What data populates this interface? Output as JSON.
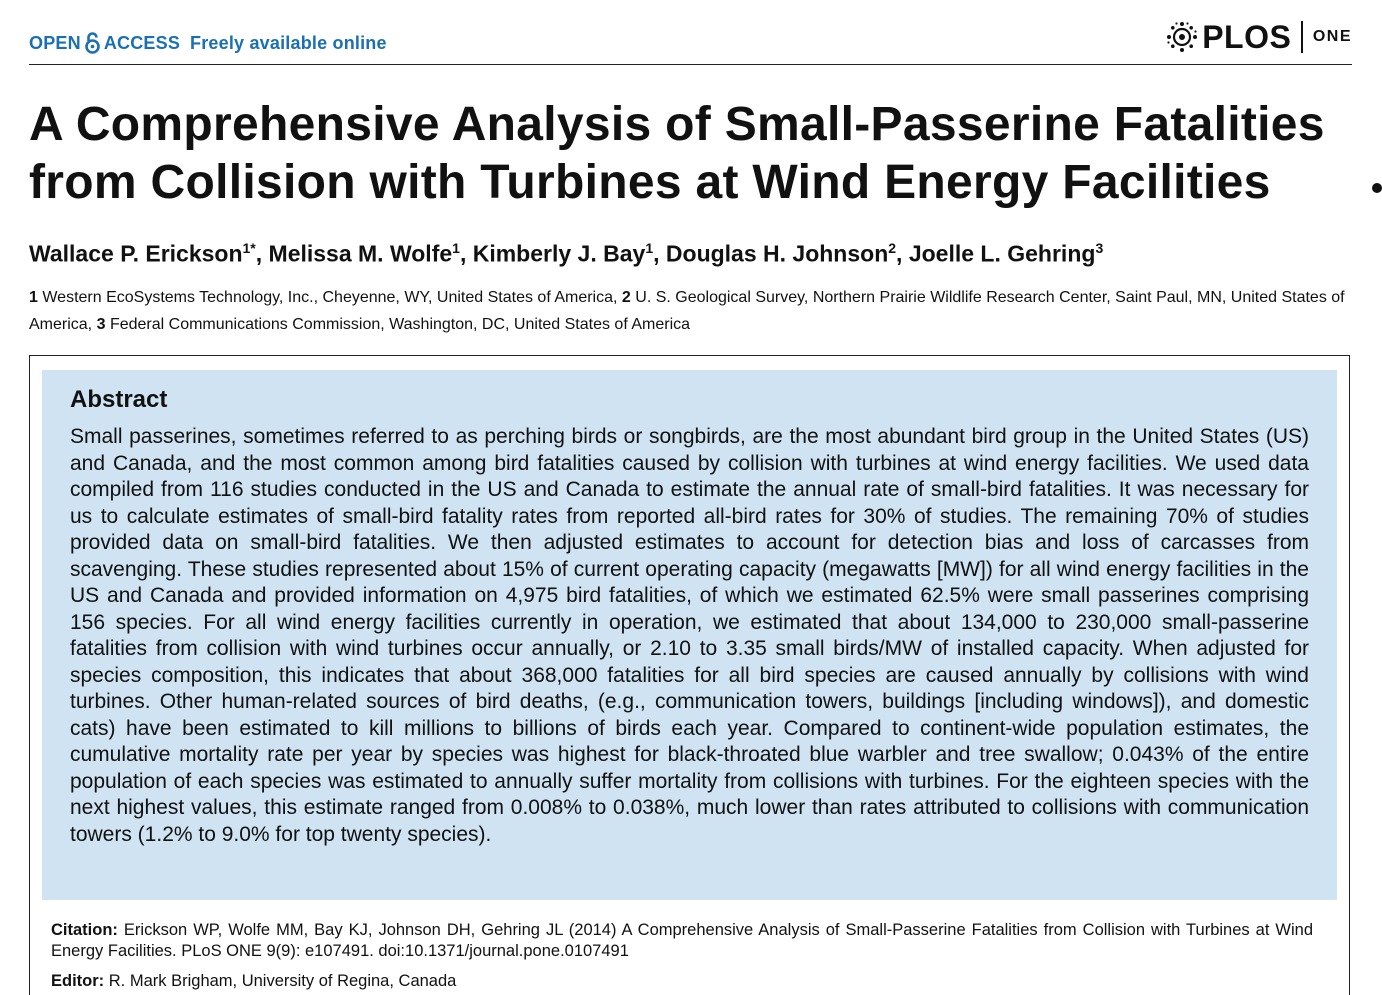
{
  "header": {
    "open_access": "OPEN",
    "access": "ACCESS",
    "freely_available": "Freely available online",
    "journal_brand": "PLOS",
    "journal_sub": "ONE",
    "brand_color": "#1b6fb5"
  },
  "article": {
    "title": "A Comprehensive Analysis of Small-Passerine Fatalities from Collision with Turbines at Wind Energy Facilities",
    "authors": [
      {
        "name": "Wallace P. Erickson",
        "sup": "1*"
      },
      {
        "name": "Melissa M. Wolfe",
        "sup": "1"
      },
      {
        "name": "Kimberly J. Bay",
        "sup": "1"
      },
      {
        "name": "Douglas H. Johnson",
        "sup": "2"
      },
      {
        "name": "Joelle L. Gehring",
        "sup": "3"
      }
    ],
    "affiliations": [
      {
        "num": "1",
        "text": "Western EcoSystems Technology, Inc., Cheyenne, WY, United States of America,"
      },
      {
        "num": "2",
        "text": "U. S. Geological Survey, Northern Prairie Wildlife Research Center, Saint Paul, MN, United States of America,"
      },
      {
        "num": "3",
        "text": "Federal Communications Commission, Washington, DC, United States of America"
      }
    ]
  },
  "abstract": {
    "heading": "Abstract",
    "text": "Small passerines, sometimes referred to as perching birds or songbirds, are the most abundant bird group in the United States (US) and Canada, and the most common among bird fatalities caused by collision with turbines at wind energy facilities. We used data compiled from 116 studies conducted in the US and Canada to estimate the annual rate of small-bird fatalities. It was necessary for us to calculate estimates of small-bird fatality rates from reported all-bird rates for 30% of studies. The remaining 70% of studies provided data on small-bird fatalities. We then adjusted estimates to account for detection bias and loss of carcasses from scavenging. These studies represented about 15% of current operating capacity (megawatts [MW]) for all wind energy facilities in the US and Canada and provided information on 4,975 bird fatalities, of which we estimated 62.5% were small passerines comprising 156 species. For all wind energy facilities currently in operation, we estimated that about 134,000 to 230,000 small-passerine fatalities from collision with wind turbines occur annually, or 2.10 to 3.35 small birds/MW of installed capacity. When adjusted for species composition, this indicates that about 368,000 fatalities for all bird species are caused annually by collisions with wind turbines. Other human-related sources of bird deaths, (e.g., communication towers, buildings [including windows]), and domestic cats) have been estimated to kill millions to billions of birds each year. Compared to continent-wide population estimates, the cumulative mortality rate per year by species was highest for black-throated blue warbler and tree swallow; 0.043% of the entire population of each species was estimated to annually suffer mortality from collisions with turbines. For the eighteen species with the next highest values, this estimate ranged from 0.008% to 0.038%, much lower than rates attributed to collisions with communication towers (1.2% to 9.0% for top twenty species).",
    "background_color": "#cfe3f2"
  },
  "citation": {
    "label": "Citation:",
    "text": "Erickson WP, Wolfe MM, Bay KJ, Johnson DH, Gehring JL (2014) A Comprehensive Analysis of Small-Passerine Fatalities from Collision with Turbines at Wind Energy Facilities. PLoS ONE 9(9): e107491. doi:10.1371/journal.pone.0107491"
  },
  "editor": {
    "label": "Editor:",
    "text": "R. Mark Brigham, University of Regina, Canada"
  }
}
